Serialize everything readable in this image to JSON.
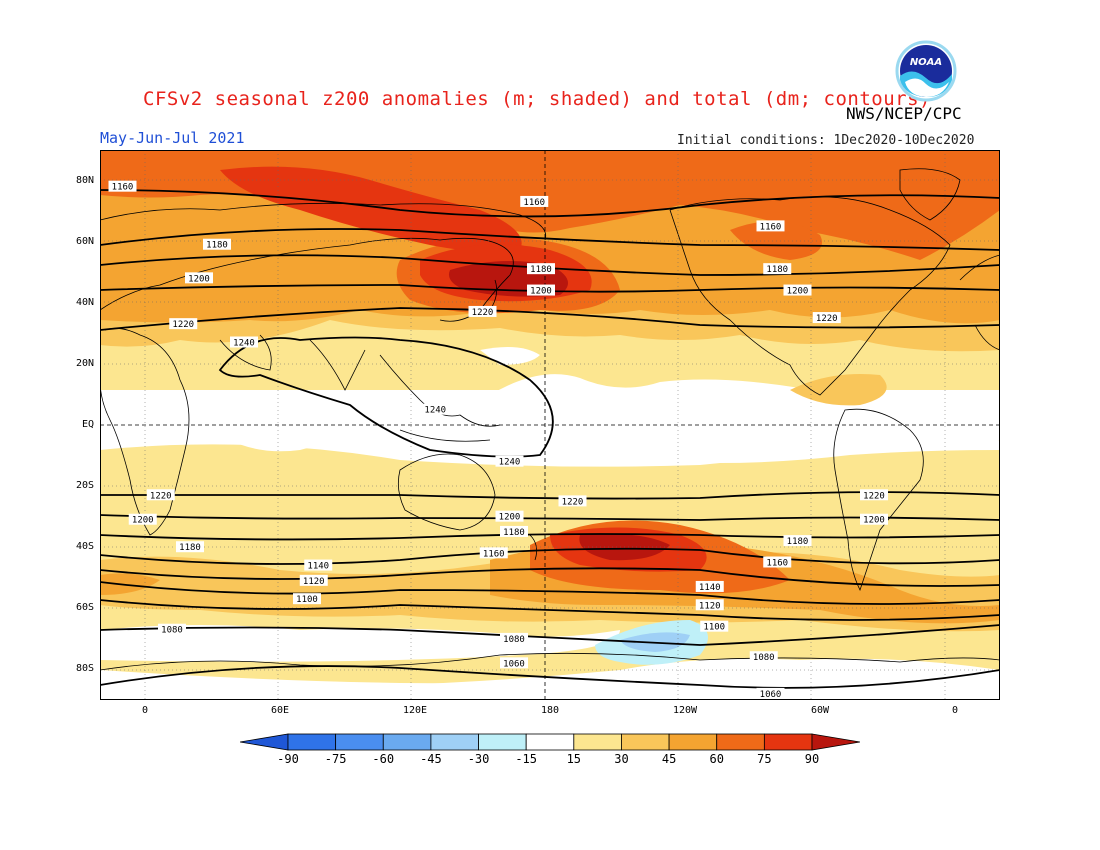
{
  "header": {
    "title": "CFSv2 seasonal z200 anomalies (m; shaded) and total (dm; contours)",
    "agency": "NWS/NCEP/CPC",
    "period": "May-Jun-Jul 2021",
    "initial_conditions": "Initial conditions: 1Dec2020-10Dec2020",
    "logo_text": "NOAA"
  },
  "map": {
    "projection": "equirectangular",
    "lon_range": [
      -20,
      380
    ],
    "lat_range": [
      -90,
      90
    ],
    "lat_ticks": [
      {
        "lat": 80,
        "label": "80N"
      },
      {
        "lat": 60,
        "label": "60N"
      },
      {
        "lat": 40,
        "label": "40N"
      },
      {
        "lat": 20,
        "label": "20N"
      },
      {
        "lat": 0,
        "label": "EQ"
      },
      {
        "lat": -20,
        "label": "20S"
      },
      {
        "lat": -40,
        "label": "40S"
      },
      {
        "lat": -60,
        "label": "60S"
      },
      {
        "lat": -80,
        "label": "80S"
      }
    ],
    "lon_ticks": [
      {
        "lon": 0,
        "label": "0"
      },
      {
        "lon": 60,
        "label": "60E"
      },
      {
        "lon": 120,
        "label": "120E"
      },
      {
        "lon": 180,
        "label": "180"
      },
      {
        "lon": 240,
        "label": "120W"
      },
      {
        "lon": 300,
        "label": "60W"
      },
      {
        "lon": 360,
        "label": "0"
      }
    ],
    "contour_labels": [
      {
        "text": "1160",
        "lon": -10,
        "lat": 78
      },
      {
        "text": "1160",
        "lon": 173,
        "lat": 73
      },
      {
        "text": "1160",
        "lon": 278,
        "lat": 65
      },
      {
        "text": "1180",
        "lon": 32,
        "lat": 59
      },
      {
        "text": "1180",
        "lon": 176,
        "lat": 51
      },
      {
        "text": "1180",
        "lon": 281,
        "lat": 51
      },
      {
        "text": "1200",
        "lon": 24,
        "lat": 48
      },
      {
        "text": "1200",
        "lon": 176,
        "lat": 44
      },
      {
        "text": "1200",
        "lon": 290,
        "lat": 44
      },
      {
        "text": "1220",
        "lon": 17,
        "lat": 33
      },
      {
        "text": "1220",
        "lon": 150,
        "lat": 37
      },
      {
        "text": "1220",
        "lon": 303,
        "lat": 35
      },
      {
        "text": "1240",
        "lon": 44,
        "lat": 27
      },
      {
        "text": "1240",
        "lon": 129,
        "lat": 5
      },
      {
        "text": "1240",
        "lon": 162,
        "lat": -12
      },
      {
        "text": "1220",
        "lon": 7,
        "lat": -23
      },
      {
        "text": "1220",
        "lon": 190,
        "lat": -25
      },
      {
        "text": "1220",
        "lon": 324,
        "lat": -23
      },
      {
        "text": "1200",
        "lon": -1,
        "lat": -31
      },
      {
        "text": "1200",
        "lon": 162,
        "lat": -30
      },
      {
        "text": "1200",
        "lon": 324,
        "lat": -31
      },
      {
        "text": "1180",
        "lon": 20,
        "lat": -40
      },
      {
        "text": "1180",
        "lon": 164,
        "lat": -35
      },
      {
        "text": "1180",
        "lon": 290,
        "lat": -38
      },
      {
        "text": "1160",
        "lon": 155,
        "lat": -42
      },
      {
        "text": "1160",
        "lon": 281,
        "lat": -45
      },
      {
        "text": "1140",
        "lon": 77,
        "lat": -46
      },
      {
        "text": "1140",
        "lon": 251,
        "lat": -53
      },
      {
        "text": "1120",
        "lon": 75,
        "lat": -51
      },
      {
        "text": "1120",
        "lon": 251,
        "lat": -59
      },
      {
        "text": "1100",
        "lon": 72,
        "lat": -57
      },
      {
        "text": "1100",
        "lon": 253,
        "lat": -66
      },
      {
        "text": "1080",
        "lon": 12,
        "lat": -67
      },
      {
        "text": "1080",
        "lon": 164,
        "lat": -70
      },
      {
        "text": "1080",
        "lon": 275,
        "lat": -76
      },
      {
        "text": "1060",
        "lon": 164,
        "lat": -78
      },
      {
        "text": "1060",
        "lon": 278,
        "lat": -88
      }
    ]
  },
  "colorbar": {
    "labels": [
      "-90",
      "-75",
      "-60",
      "-45",
      "-30",
      "-15",
      "15",
      "30",
      "45",
      "60",
      "75",
      "90"
    ],
    "colors": [
      "#1f57d6",
      "#2f73e8",
      "#4a8ef0",
      "#6aaaf0",
      "#9fd0f6",
      "#bff0f8",
      "#ffffff",
      "#fce690",
      "#f9c65a",
      "#f4a431",
      "#ef6a18",
      "#e53510",
      "#b8160e"
    ]
  },
  "colors": {
    "title": "#e8231c",
    "period": "#1f4fd6",
    "contour": "#000000",
    "coast": "#000000"
  }
}
